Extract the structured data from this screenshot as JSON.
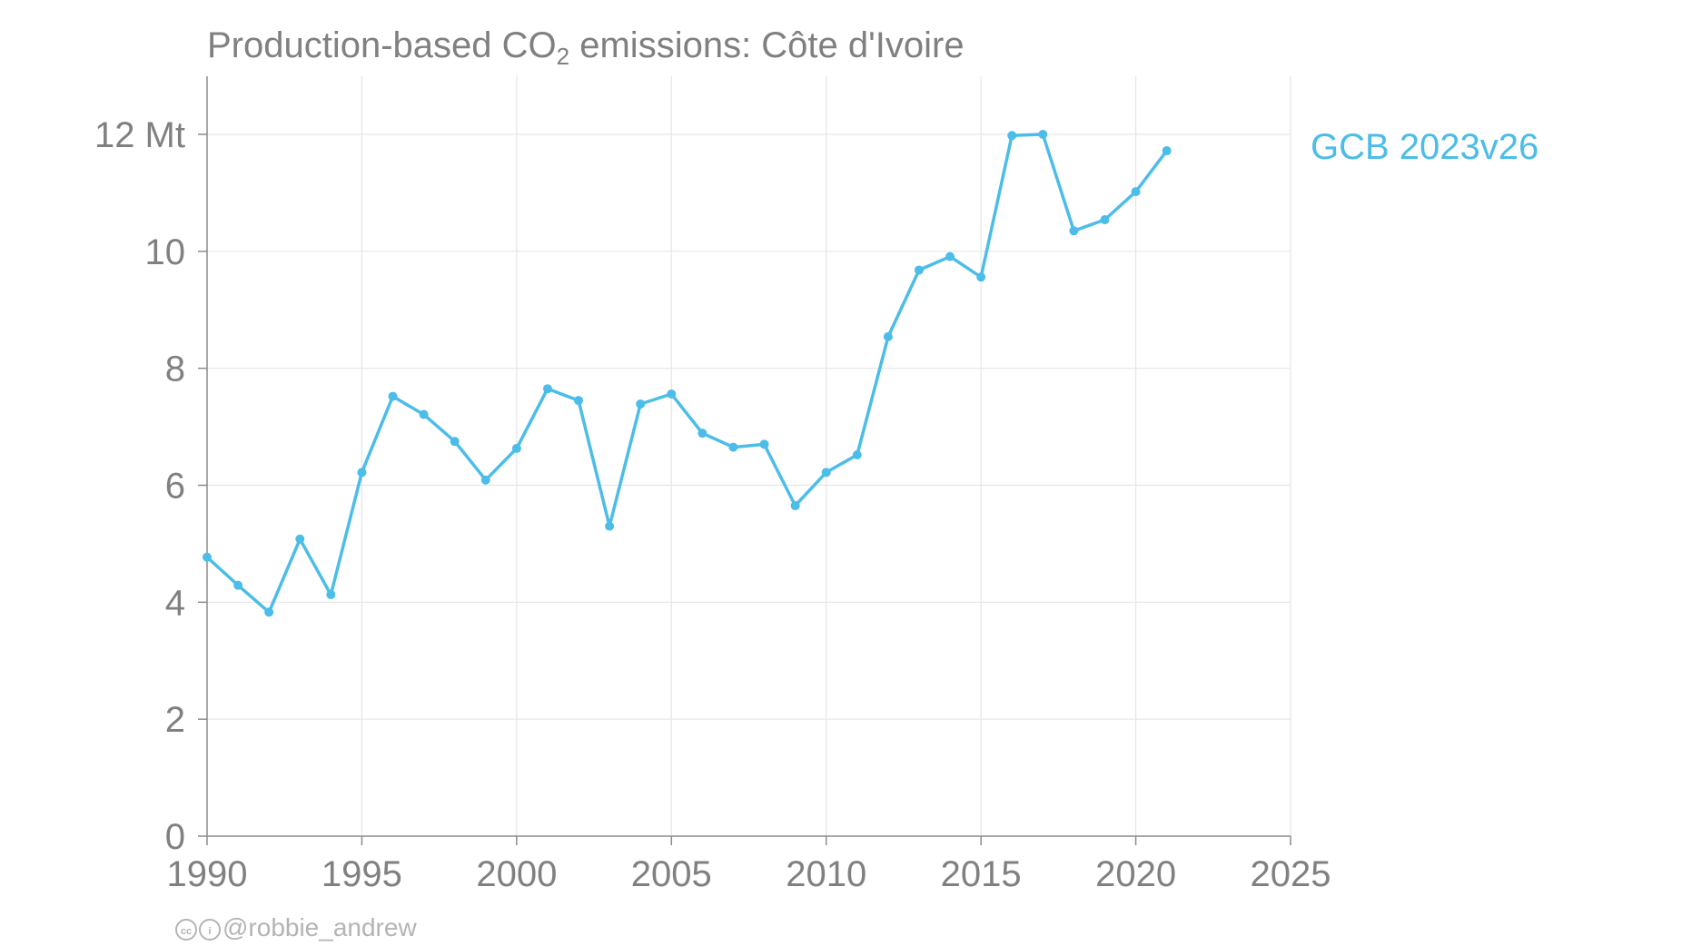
{
  "chart_data": {
    "type": "line",
    "title_parts": {
      "pre": "Production-based CO",
      "sub": "2",
      "post": " emissions: Côte d'Ivoire"
    },
    "xlabel": "",
    "ylabel": "",
    "xlim": [
      1990,
      2025
    ],
    "ylim": [
      0,
      13
    ],
    "x_ticks": [
      1990,
      1995,
      2000,
      2005,
      2010,
      2015,
      2020,
      2025
    ],
    "y_ticks": [
      0,
      2,
      4,
      6,
      8,
      10,
      12
    ],
    "y_tick_labels": [
      "0",
      "2",
      "4",
      "6",
      "8",
      "10",
      "12 Mt"
    ],
    "grid": true,
    "legend_placement": "right",
    "series": [
      {
        "name": "GCB 2023v26",
        "color": "#4bbde8",
        "x": [
          1990,
          1991,
          1992,
          1993,
          1994,
          1995,
          1996,
          1997,
          1998,
          1999,
          2000,
          2001,
          2002,
          2003,
          2004,
          2005,
          2006,
          2007,
          2008,
          2009,
          2010,
          2011,
          2012,
          2013,
          2014,
          2015,
          2016,
          2017,
          2018,
          2019,
          2020,
          2021
        ],
        "values": [
          4.77,
          4.29,
          3.83,
          5.08,
          4.13,
          6.22,
          7.52,
          7.21,
          6.75,
          6.09,
          6.63,
          7.65,
          7.45,
          5.3,
          7.39,
          7.56,
          6.89,
          6.65,
          6.7,
          5.65,
          6.22,
          6.52,
          8.54,
          9.68,
          9.91,
          9.56,
          11.98,
          12.0,
          10.35,
          10.54,
          11.02,
          11.72
        ]
      }
    ]
  },
  "credit": {
    "handle": "@robbie_andrew",
    "cc_icon": "cc-icon",
    "by_icon": "by-icon"
  }
}
